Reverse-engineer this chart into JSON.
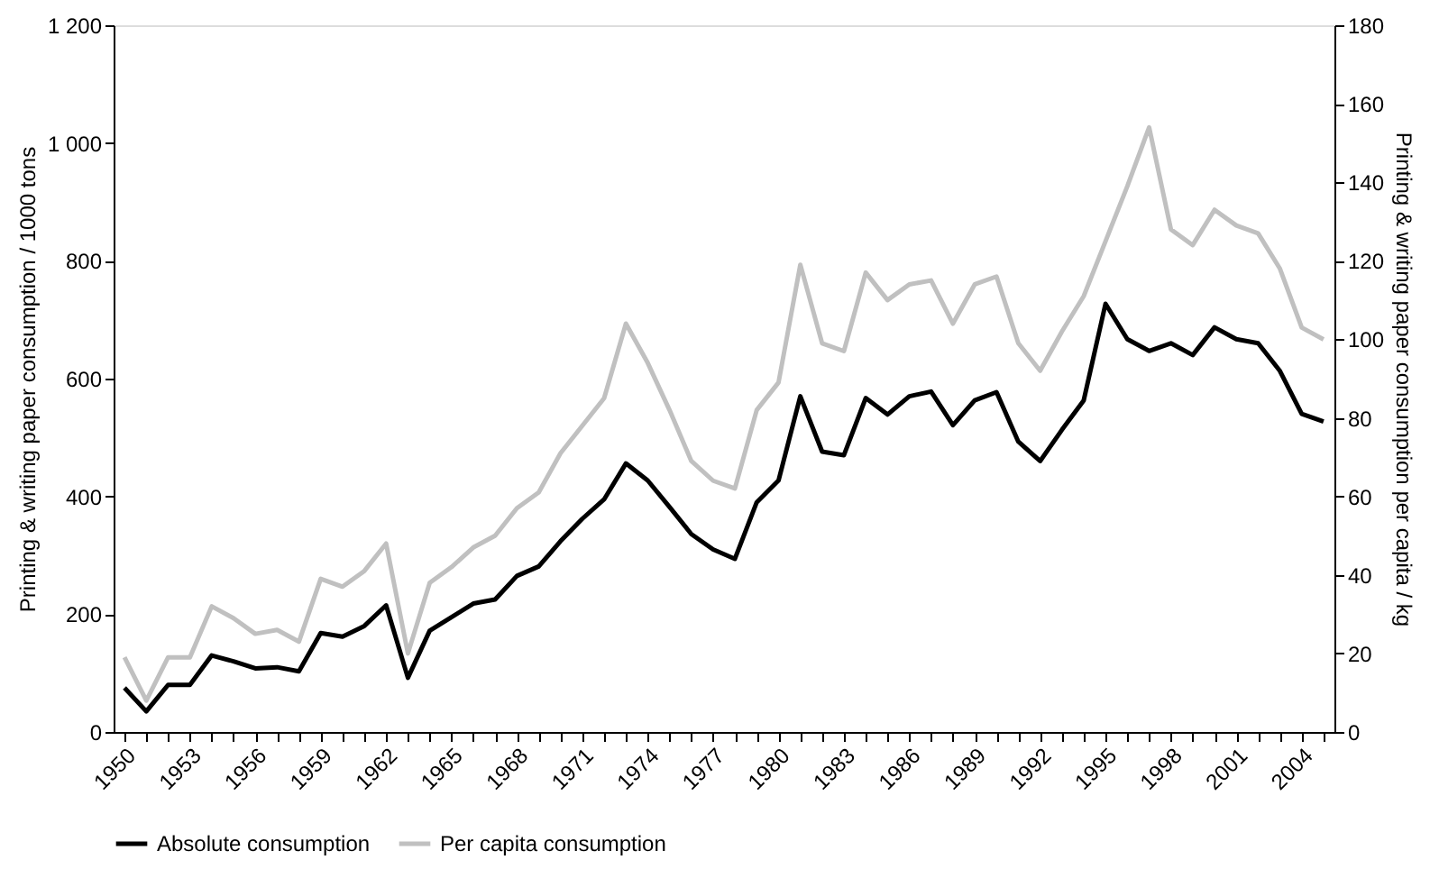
{
  "chart_data": {
    "type": "line",
    "xlabel": null,
    "ylabel": "Printing & writing paper consumption / 1000 tons",
    "y2label": "Printing & writing paper consumption per capita / kg",
    "x": [
      1950,
      1951,
      1952,
      1953,
      1954,
      1955,
      1956,
      1957,
      1958,
      1959,
      1960,
      1961,
      1962,
      1963,
      1964,
      1965,
      1966,
      1967,
      1968,
      1969,
      1970,
      1971,
      1972,
      1973,
      1974,
      1975,
      1976,
      1977,
      1978,
      1979,
      1980,
      1981,
      1982,
      1983,
      1984,
      1985,
      1986,
      1987,
      1988,
      1989,
      1990,
      1991,
      1992,
      1993,
      1994,
      1995,
      1996,
      1997,
      1998,
      1999,
      2000,
      2001,
      2002,
      2003,
      2004,
      2005
    ],
    "xlim": [
      1949.5,
      2005.5
    ],
    "xticks": [
      1950,
      {
        "value": 1951,
        "label": null
      },
      {
        "value": 1952,
        "label": null
      },
      1953,
      {
        "value": 1954,
        "label": null
      },
      {
        "value": 1955,
        "label": null
      },
      1956,
      {
        "value": 1957,
        "label": null
      },
      {
        "value": 1958,
        "label": null
      },
      1959,
      {
        "value": 1960,
        "label": null
      },
      {
        "value": 1961,
        "label": null
      },
      1962,
      {
        "value": 1963,
        "label": null
      },
      {
        "value": 1964,
        "label": null
      },
      1965,
      {
        "value": 1966,
        "label": null
      },
      {
        "value": 1967,
        "label": null
      },
      1968,
      {
        "value": 1969,
        "label": null
      },
      {
        "value": 1970,
        "label": null
      },
      1971,
      {
        "value": 1972,
        "label": null
      },
      {
        "value": 1973,
        "label": null
      },
      1974,
      {
        "value": 1975,
        "label": null
      },
      {
        "value": 1976,
        "label": null
      },
      1977,
      {
        "value": 1978,
        "label": null
      },
      {
        "value": 1979,
        "label": null
      },
      1980,
      {
        "value": 1981,
        "label": null
      },
      {
        "value": 1982,
        "label": null
      },
      1983,
      {
        "value": 1984,
        "label": null
      },
      {
        "value": 1985,
        "label": null
      },
      1986,
      {
        "value": 1987,
        "label": null
      },
      {
        "value": 1988,
        "label": null
      },
      1989,
      {
        "value": 1990,
        "label": null
      },
      {
        "value": 1991,
        "label": null
      },
      1992,
      {
        "value": 1993,
        "label": null
      },
      {
        "value": 1994,
        "label": null
      },
      1995,
      {
        "value": 1996,
        "label": null
      },
      {
        "value": 1997,
        "label": null
      },
      1998,
      {
        "value": 1999,
        "label": null
      },
      {
        "value": 2000,
        "label": null
      },
      2001,
      {
        "value": 2002,
        "label": null
      },
      {
        "value": 2003,
        "label": null
      },
      2004,
      {
        "value": 2005,
        "label": null
      }
    ],
    "ylim": [
      0,
      1200
    ],
    "yticks": [
      0,
      200,
      400,
      600,
      800,
      {
        "value": 1000,
        "label": "1 000"
      },
      {
        "value": 1200,
        "label": "1 200"
      }
    ],
    "y2lim": [
      0,
      180
    ],
    "y2ticks": [
      0,
      20,
      40,
      60,
      80,
      100,
      120,
      140,
      160,
      180
    ],
    "grid": false,
    "legend": "bottom",
    "line_style": "solid",
    "marker": "none",
    "series": [
      {
        "name": "Absolute consumption",
        "color": "#000000",
        "values": [
          75,
          35,
          80,
          80,
          130,
          120,
          108,
          110,
          103,
          168,
          162,
          180,
          215,
          92,
          172,
          195,
          218,
          225,
          265,
          281,
          324,
          362,
          395,
          456,
          427,
          382,
          336,
          310,
          294,
          390,
          427,
          570,
          476,
          470,
          567,
          539,
          570,
          578,
          521,
          563,
          577,
          493,
          460,
          513,
          563,
          727,
          667,
          647,
          660,
          640,
          687,
          667,
          660,
          613,
          540,
          527
        ]
      },
      {
        "name": "Per capita consumption",
        "color": "#c0c0c0",
        "axis": "y2",
        "values": [
          19,
          8,
          19,
          19,
          32,
          29,
          25,
          26,
          23,
          39,
          37,
          41,
          48,
          20,
          38,
          42,
          47,
          50,
          57,
          61,
          71,
          78,
          85,
          104,
          94,
          82,
          69,
          64,
          62,
          82,
          89,
          119,
          99,
          97,
          117,
          110,
          114,
          115,
          104,
          114,
          116,
          99,
          92,
          102,
          111,
          125,
          139,
          154,
          128,
          124,
          133,
          129,
          127,
          118,
          103,
          100
        ]
      }
    ]
  }
}
